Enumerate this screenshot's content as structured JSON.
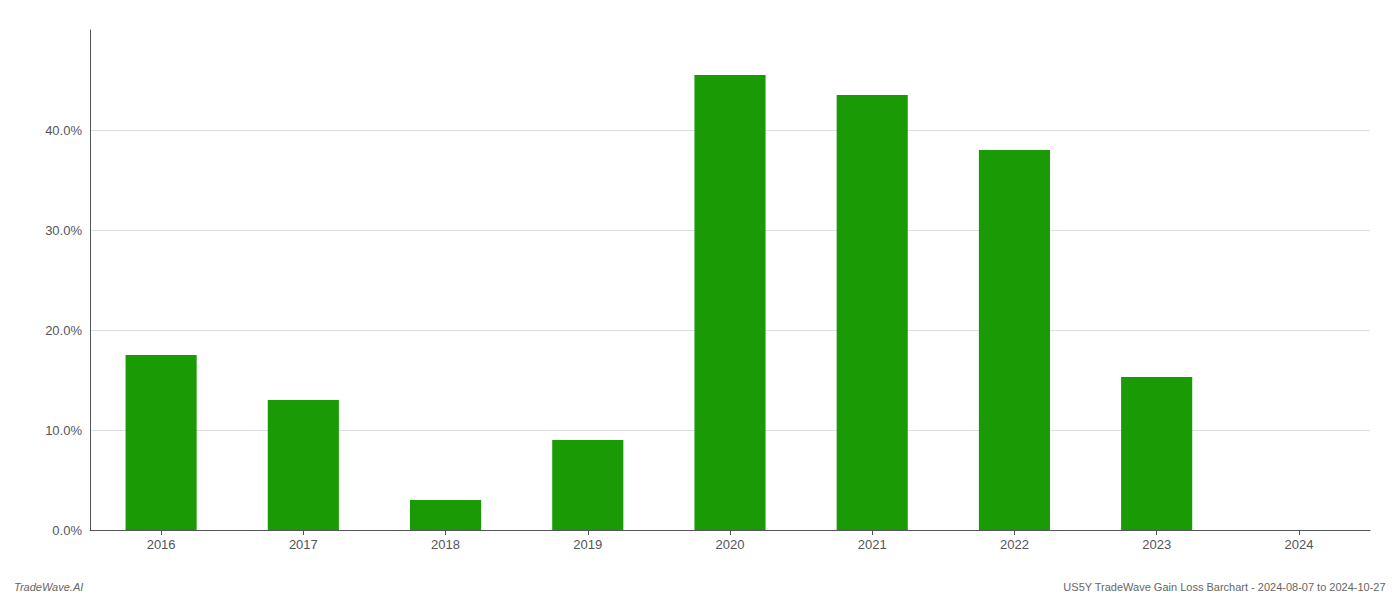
{
  "chart_data": {
    "type": "bar",
    "categories": [
      "2016",
      "2017",
      "2018",
      "2019",
      "2020",
      "2021",
      "2022",
      "2023",
      "2024"
    ],
    "values": [
      0.175,
      0.13,
      0.03,
      0.09,
      0.455,
      0.435,
      0.38,
      0.153,
      0.0
    ],
    "color": "#1a9b06",
    "ylim": [
      0,
      0.5
    ],
    "yticks": [
      {
        "value": 0.0,
        "label": "0.0%"
      },
      {
        "value": 0.1,
        "label": "10.0%"
      },
      {
        "value": 0.2,
        "label": "20.0%"
      },
      {
        "value": 0.3,
        "label": "30.0%"
      },
      {
        "value": 0.4,
        "label": "40.0%"
      }
    ],
    "grid": true,
    "annotations": [
      "TradeWave.AI",
      "US5Y TradeWave Gain Loss Barchart - 2024-08-07 to 2024-10-27"
    ]
  }
}
